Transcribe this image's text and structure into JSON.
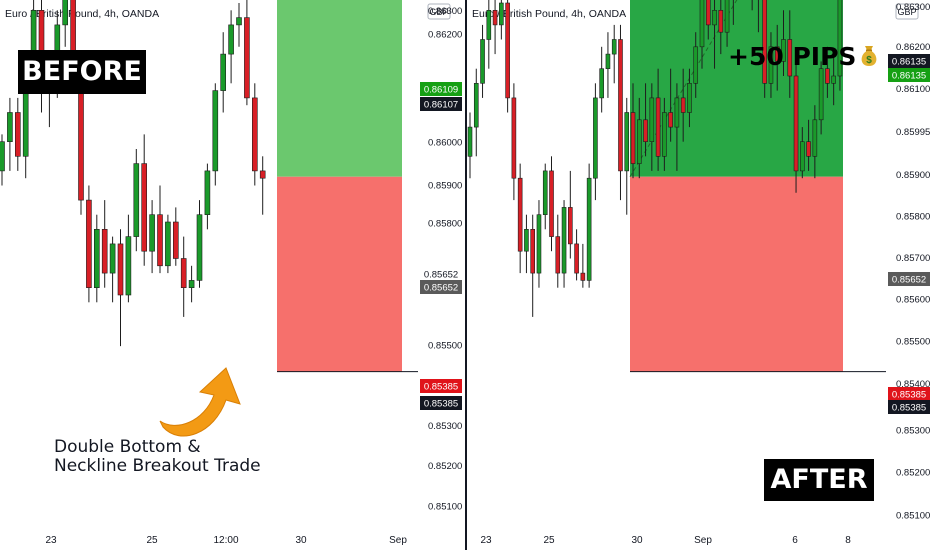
{
  "colors": {
    "up": "#1a9a2a",
    "down": "#d81f26",
    "wick": "#1d1d1d",
    "profit_light": "#6bc86e",
    "profit_dark": "#28a745",
    "loss": "#f6706c",
    "price_tag_green": "#16a014",
    "price_tag_red": "#e0131a",
    "price_tag_gray": "#5a5a5a",
    "arrow": "#f39a14"
  },
  "panels": [
    {
      "id": "before",
      "header": "Euro / British Pound, 4h, OANDA",
      "currency": "GBP",
      "badge": "BEFORE",
      "annotation": [
        "Double Bottom &",
        "Neckline Breakout Trade"
      ],
      "x_ticks": [
        "23",
        "25",
        "12:00",
        "30",
        "Sep"
      ],
      "y_ticks": [
        "0.86300",
        "0.86200",
        "0.86000",
        "0.85900",
        "0.85800",
        "0.85500",
        "0.85400",
        "0.85300",
        "0.85200",
        "0.85100"
      ],
      "price_tags": [
        {
          "label": "0.86109",
          "color": "green"
        },
        {
          "label": "0.86107",
          "color": "black"
        },
        {
          "label": "0.85652",
          "color": "plain"
        },
        {
          "label": "0.85652",
          "color": "gray"
        },
        {
          "label": "0.85385",
          "color": "red"
        },
        {
          "label": "0.85385",
          "color": "black"
        }
      ],
      "trade": {
        "entry": 0.85652,
        "target": 0.86107,
        "stop": 0.85385
      }
    },
    {
      "id": "after",
      "header": "Euro / British Pound, 4h, OANDA",
      "currency": "GBP",
      "badge": "AFTER",
      "result": "+50 PIPS",
      "result_icon": "money-bag-icon",
      "x_ticks": [
        "23",
        "25",
        "30",
        "Sep",
        "6",
        "8"
      ],
      "y_ticks": [
        "0.86300",
        "0.86200",
        "0.86100",
        "0.85995",
        "0.85900",
        "0.85800",
        "0.85700",
        "0.85600",
        "0.85500",
        "0.85400",
        "0.85300",
        "0.85200",
        "0.85100"
      ],
      "price_tags": [
        {
          "label": "0.86135",
          "color": "black"
        },
        {
          "label": "0.86135",
          "color": "green"
        },
        {
          "label": "0.85652",
          "color": "gray"
        },
        {
          "label": "0.85385",
          "color": "red"
        },
        {
          "label": "0.85385",
          "color": "black"
        }
      ],
      "trade": {
        "entry": 0.85652,
        "target": 0.86135,
        "stop": 0.85385
      }
    }
  ],
  "chart_data": [
    {
      "type": "candlestick",
      "title": "Euro / British Pound, 4h, OANDA",
      "y_unit": "GBP",
      "ylim": [
        0.8505,
        0.8633
      ],
      "x_ticks": [
        "23",
        "25",
        "12:00",
        "30",
        "Sep"
      ],
      "candles": [
        [
          0.8566,
          0.8571,
          0.8564,
          0.857
        ],
        [
          0.857,
          0.8576,
          0.8566,
          0.8574
        ],
        [
          0.8574,
          0.8576,
          0.8566,
          0.8568
        ],
        [
          0.8568,
          0.8582,
          0.8565,
          0.858
        ],
        [
          0.858,
          0.859,
          0.8578,
          0.8588
        ],
        [
          0.8588,
          0.8592,
          0.8574,
          0.8577
        ],
        [
          0.8577,
          0.8582,
          0.8572,
          0.8579
        ],
        [
          0.8579,
          0.8588,
          0.8576,
          0.8586
        ],
        [
          0.8586,
          0.8592,
          0.8583,
          0.859
        ],
        [
          0.859,
          0.8592,
          0.8578,
          0.858
        ],
        [
          0.858,
          0.8582,
          0.856,
          0.8562
        ],
        [
          0.8562,
          0.8564,
          0.8548,
          0.855
        ],
        [
          0.855,
          0.856,
          0.8548,
          0.8558
        ],
        [
          0.8558,
          0.8562,
          0.855,
          0.8552
        ],
        [
          0.8552,
          0.8557,
          0.8548,
          0.8556
        ],
        [
          0.8556,
          0.8558,
          0.8542,
          0.8549
        ],
        [
          0.8549,
          0.856,
          0.8548,
          0.8557
        ],
        [
          0.8557,
          0.8569,
          0.8555,
          0.8567
        ],
        [
          0.8567,
          0.8571,
          0.8553,
          0.8555
        ],
        [
          0.8555,
          0.8562,
          0.8552,
          0.856
        ],
        [
          0.856,
          0.8564,
          0.8552,
          0.8553
        ],
        [
          0.8553,
          0.856,
          0.8552,
          0.8559
        ],
        [
          0.8559,
          0.8561,
          0.8553,
          0.8554
        ],
        [
          0.8554,
          0.8557,
          0.8546,
          0.855
        ],
        [
          0.855,
          0.8553,
          0.8548,
          0.8551
        ],
        [
          0.8551,
          0.8562,
          0.855,
          0.856
        ],
        [
          0.856,
          0.8567,
          0.8558,
          0.8566
        ],
        [
          0.8566,
          0.8578,
          0.8564,
          0.8577
        ],
        [
          0.8577,
          0.8585,
          0.8574,
          0.8582
        ],
        [
          0.8582,
          0.8588,
          0.8578,
          0.8586
        ],
        [
          0.8586,
          0.8589,
          0.8583,
          0.8587
        ],
        [
          0.8587,
          0.859,
          0.8575,
          0.8576
        ],
        [
          0.8576,
          0.8578,
          0.8564,
          0.8566
        ],
        [
          0.8566,
          0.8568,
          0.856,
          0.8565
        ]
      ]
    },
    {
      "type": "candlestick",
      "title": "Euro / British Pound, 4h, OANDA",
      "y_unit": "GBP",
      "ylim": [
        0.8505,
        0.8633
      ],
      "x_ticks": [
        "23",
        "25",
        "30",
        "Sep",
        "6",
        "8"
      ],
      "candles": [
        [
          0.8568,
          0.8574,
          0.8565,
          0.8572
        ],
        [
          0.8572,
          0.858,
          0.8568,
          0.8578
        ],
        [
          0.8578,
          0.8586,
          0.8576,
          0.8584
        ],
        [
          0.8584,
          0.859,
          0.858,
          0.8588
        ],
        [
          0.8588,
          0.8592,
          0.8582,
          0.8586
        ],
        [
          0.8586,
          0.8591,
          0.8584,
          0.8589
        ],
        [
          0.8589,
          0.8591,
          0.8574,
          0.8576
        ],
        [
          0.8576,
          0.8578,
          0.8562,
          0.8565
        ],
        [
          0.8565,
          0.8567,
          0.8552,
          0.8555
        ],
        [
          0.8555,
          0.856,
          0.8552,
          0.8558
        ],
        [
          0.8558,
          0.856,
          0.8546,
          0.8552
        ],
        [
          0.8552,
          0.8562,
          0.855,
          0.856
        ],
        [
          0.856,
          0.8567,
          0.8558,
          0.8566
        ],
        [
          0.8566,
          0.8568,
          0.8555,
          0.8557
        ],
        [
          0.8557,
          0.856,
          0.855,
          0.8552
        ],
        [
          0.8552,
          0.8562,
          0.855,
          0.8561
        ],
        [
          0.8561,
          0.8566,
          0.8554,
          0.8556
        ],
        [
          0.8556,
          0.8558,
          0.8551,
          0.8552
        ],
        [
          0.8552,
          0.8556,
          0.855,
          0.8551
        ],
        [
          0.8551,
          0.8567,
          0.855,
          0.8565
        ],
        [
          0.8565,
          0.8578,
          0.8562,
          0.8576
        ],
        [
          0.8576,
          0.8583,
          0.8574,
          0.858
        ],
        [
          0.858,
          0.8585,
          0.8576,
          0.8582
        ],
        [
          0.8582,
          0.8586,
          0.8578,
          0.8584
        ],
        [
          0.8584,
          0.8586,
          0.8562,
          0.8566
        ],
        [
          0.8566,
          0.8576,
          0.856,
          0.8574
        ],
        [
          0.8574,
          0.8578,
          0.8565,
          0.8567
        ],
        [
          0.8567,
          0.8576,
          0.8565,
          0.8573
        ],
        [
          0.8573,
          0.8578,
          0.8568,
          0.857
        ],
        [
          0.857,
          0.8578,
          0.8566,
          0.8576
        ],
        [
          0.8576,
          0.858,
          0.8566,
          0.8568
        ],
        [
          0.8568,
          0.8576,
          0.8566,
          0.8574
        ],
        [
          0.8574,
          0.858,
          0.857,
          0.8572
        ],
        [
          0.8572,
          0.8578,
          0.8566,
          0.8576
        ],
        [
          0.8576,
          0.858,
          0.857,
          0.8574
        ],
        [
          0.8574,
          0.858,
          0.8572,
          0.8578
        ],
        [
          0.8578,
          0.8585,
          0.8576,
          0.8583
        ],
        [
          0.8583,
          0.8592,
          0.858,
          0.859
        ],
        [
          0.859,
          0.8595,
          0.8584,
          0.8586
        ],
        [
          0.8586,
          0.8592,
          0.858,
          0.8588
        ],
        [
          0.8588,
          0.8594,
          0.8582,
          0.8585
        ],
        [
          0.8585,
          0.8592,
          0.8583,
          0.859
        ],
        [
          0.859,
          0.8596,
          0.8586,
          0.8594
        ],
        [
          0.8594,
          0.8601,
          0.859,
          0.8598
        ],
        [
          0.8598,
          0.8601,
          0.859,
          0.8597
        ],
        [
          0.8597,
          0.8599,
          0.8588,
          0.8592
        ],
        [
          0.8592,
          0.8594,
          0.8585,
          0.859
        ],
        [
          0.859,
          0.8592,
          0.8576,
          0.8578
        ],
        [
          0.8578,
          0.8585,
          0.8576,
          0.8583
        ],
        [
          0.8583,
          0.8586,
          0.8577,
          0.8581
        ],
        [
          0.8581,
          0.8588,
          0.8579,
          0.8584
        ],
        [
          0.8584,
          0.8588,
          0.8576,
          0.8579
        ],
        [
          0.8579,
          0.8582,
          0.8563,
          0.8566
        ],
        [
          0.8566,
          0.8572,
          0.8565,
          0.857
        ],
        [
          0.857,
          0.8573,
          0.8566,
          0.8568
        ],
        [
          0.8568,
          0.8575,
          0.8565,
          0.8573
        ],
        [
          0.8573,
          0.8581,
          0.8571,
          0.858
        ],
        [
          0.858,
          0.8583,
          0.8576,
          0.8578
        ],
        [
          0.8578,
          0.8582,
          0.8575,
          0.8579
        ],
        [
          0.8579,
          0.8596,
          0.8577,
          0.8593
        ],
        [
          0.8593,
          0.86,
          0.859,
          0.8598
        ]
      ]
    }
  ]
}
